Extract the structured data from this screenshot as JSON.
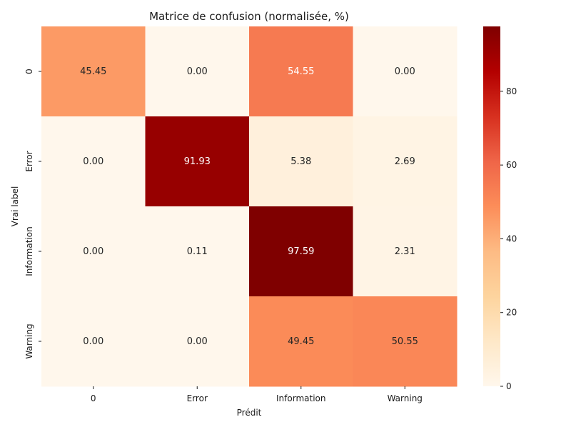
{
  "chart_data": {
    "type": "heatmap",
    "title": "Matrice de confusion (normalisée, %)",
    "xlabel": "Prédit",
    "ylabel": "Vrai label",
    "x_categories": [
      "0",
      "Error",
      "Information",
      "Warning"
    ],
    "y_categories": [
      "0",
      "Error",
      "Information",
      "Warning"
    ],
    "values": [
      [
        45.45,
        0.0,
        54.55,
        0.0
      ],
      [
        0.0,
        91.93,
        5.38,
        2.69
      ],
      [
        0.0,
        0.11,
        97.59,
        2.31
      ],
      [
        0.0,
        0.0,
        49.45,
        50.55
      ]
    ],
    "value_format": "0.00",
    "colormap": "OrRd",
    "colorbar": {
      "range": [
        0,
        97.59
      ],
      "ticks": [
        0,
        20,
        40,
        60,
        80
      ]
    }
  }
}
